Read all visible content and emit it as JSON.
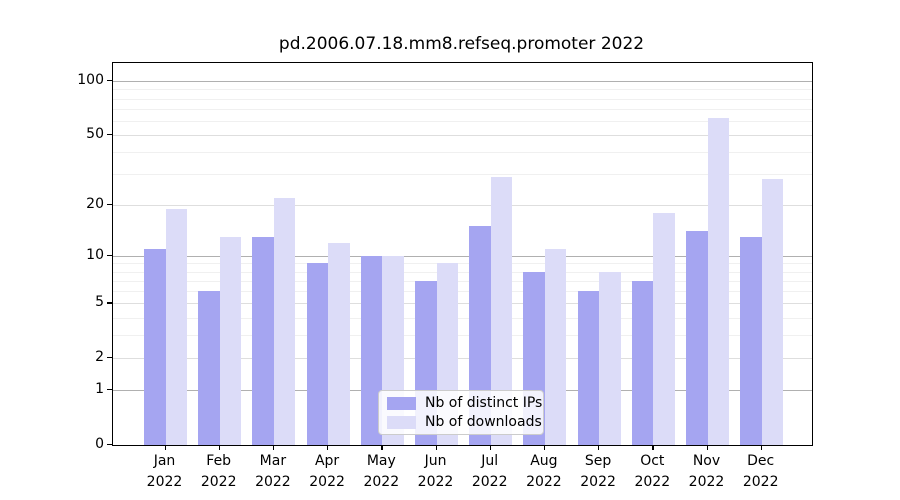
{
  "title": "pd.2006.07.18.mm8.refseq.promoter 2022",
  "colors": {
    "distinct_ips_bar": "#a5a5f1",
    "downloads_bar": "#dcdcf8",
    "grid_major": "#b0b0b0",
    "grid_mid": "#dedede",
    "grid_minor": "#f0f0f0",
    "axis": "#000000"
  },
  "legend": {
    "items": [
      {
        "label": "Nb of distinct IPs",
        "color": "#a5a5f1"
      },
      {
        "label": "Nb of downloads",
        "color": "#dcdcf8"
      }
    ]
  },
  "chart_data": {
    "type": "bar",
    "title": "pd.2006.07.18.mm8.refseq.promoter 2022",
    "categories": [
      "Jan 2022",
      "Feb 2022",
      "Mar 2022",
      "Apr 2022",
      "May 2022",
      "Jun 2022",
      "Jul 2022",
      "Aug 2022",
      "Sep 2022",
      "Oct 2022",
      "Nov 2022",
      "Dec 2022"
    ],
    "x_tick_top_lines": [
      "Jan",
      "Feb",
      "Mar",
      "Apr",
      "May",
      "Jun",
      "Jul",
      "Aug",
      "Sep",
      "Oct",
      "Nov",
      "Dec"
    ],
    "x_tick_bottom_line": "2022",
    "series": [
      {
        "name": "Nb of distinct IPs",
        "color": "#a5a5f1",
        "values": [
          11,
          6,
          13,
          9,
          10,
          7,
          15,
          8,
          6,
          7,
          14,
          13
        ]
      },
      {
        "name": "Nb of downloads",
        "color": "#dcdcf8",
        "values": [
          19,
          13,
          22,
          12,
          10,
          9,
          29,
          11,
          8,
          18,
          62,
          28
        ]
      }
    ],
    "xlabel": "",
    "ylabel": "",
    "y_scale": "log10(value+1)",
    "y_axis_ticks": [
      100,
      50,
      20,
      10,
      5,
      2,
      1,
      0
    ],
    "y_gridline_values": [
      1,
      2,
      3,
      4,
      5,
      6,
      7,
      8,
      9,
      10,
      20,
      30,
      40,
      50,
      60,
      70,
      80,
      90,
      100
    ],
    "y_gridline_major": [
      1,
      10,
      100
    ],
    "y_gridline_mid": [
      2,
      5,
      20,
      50
    ],
    "ylim": [
      0,
      126
    ],
    "grid": "on",
    "legend_position": "lower center"
  }
}
